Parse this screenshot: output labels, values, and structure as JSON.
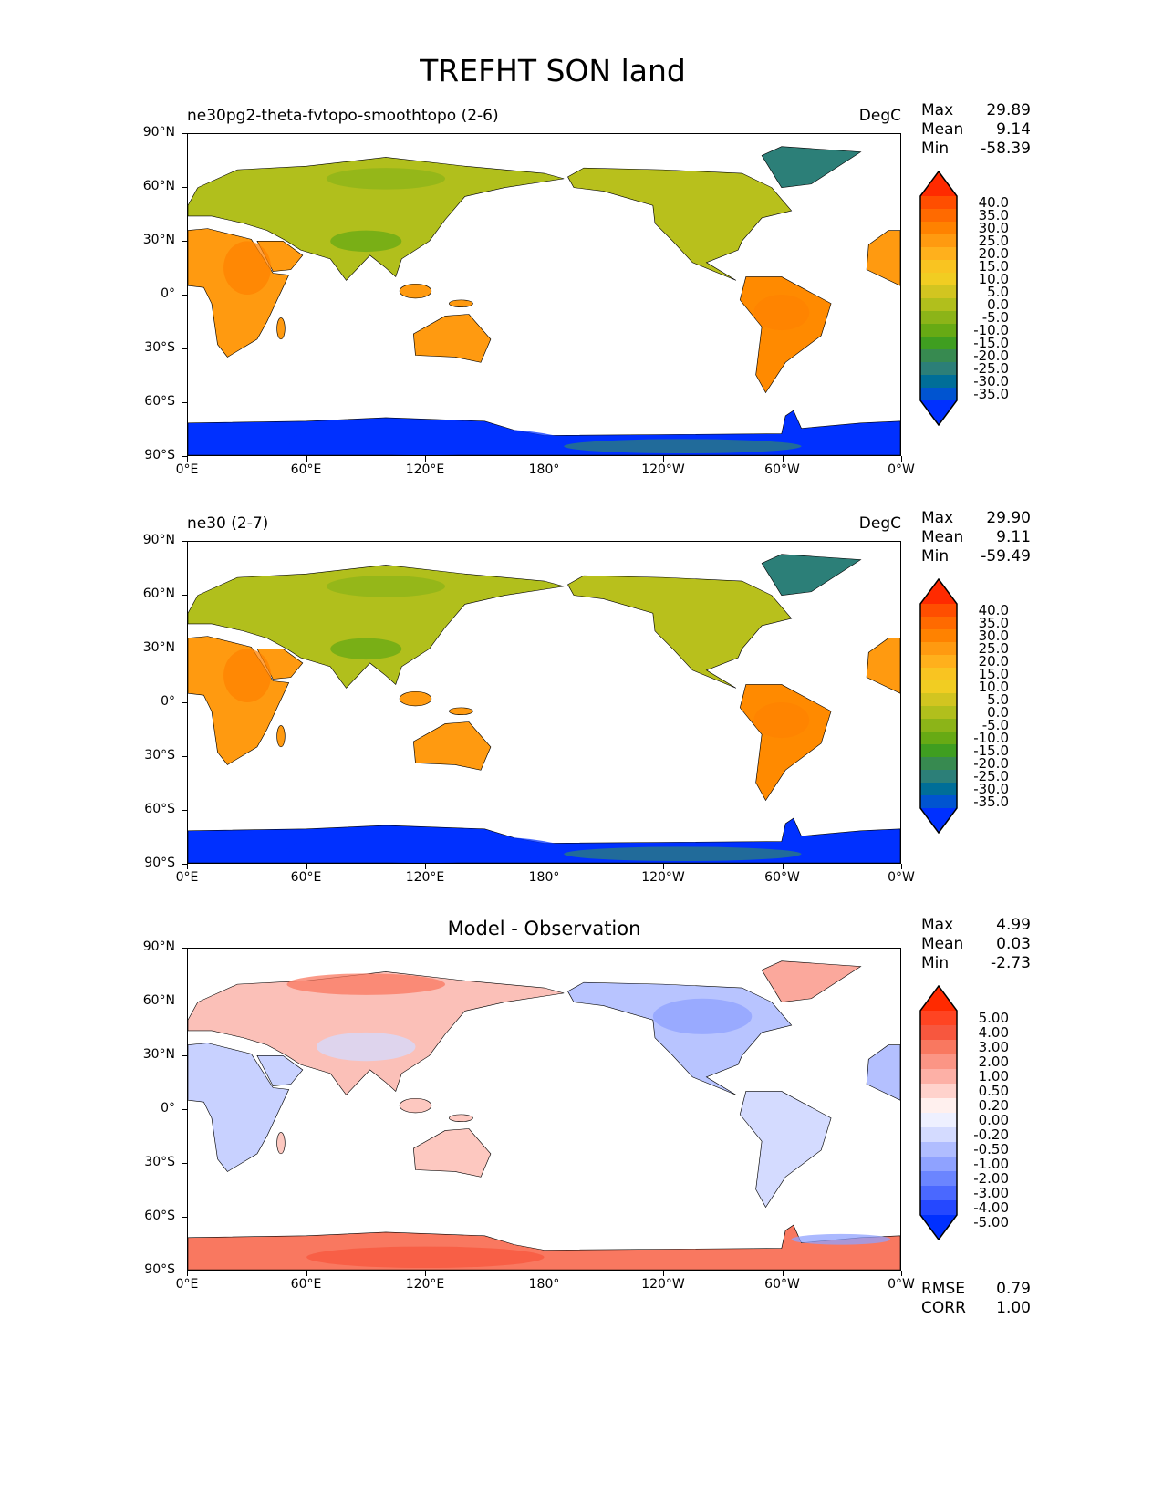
{
  "title": "TREFHT SON land",
  "x_ticks": [
    "0°E",
    "60°E",
    "120°E",
    "180°",
    "120°W",
    "60°W",
    "0°W"
  ],
  "y_ticks": [
    "90°N",
    "60°N",
    "30°N",
    "0°",
    "30°S",
    "60°S",
    "90°S"
  ],
  "panels": [
    {
      "title_left": "ne30pg2-theta-fvtopo-smoothtopo (2-6)",
      "title_right": "DegC",
      "title_center": "",
      "stats": {
        "max_label": "Max",
        "max": "29.89",
        "mean_label": "Mean",
        "mean": "9.14",
        "min_label": "Min",
        "min": "-58.39"
      },
      "colorbar": {
        "labels": [
          "40.0",
          "35.0",
          "30.0",
          "25.0",
          "20.0",
          "15.0",
          "10.0",
          "5.0",
          "0.0",
          "-5.0",
          "-10.0",
          "-15.0",
          "-20.0",
          "-25.0",
          "-30.0",
          "-35.0"
        ],
        "colors": [
          "#ff2a00",
          "#ff4e00",
          "#ff6a00",
          "#ff8200",
          "#ff9a10",
          "#ffb01c",
          "#f9c421",
          "#f1cd22",
          "#d2c520",
          "#b1bf1c",
          "#8cb418",
          "#67aa14",
          "#3f9e20",
          "#378a50",
          "#2c7f78",
          "#006e98",
          "#0054d0",
          "#0030ff"
        ]
      }
    },
    {
      "title_left": "ne30 (2-7)",
      "title_right": "DegC",
      "title_center": "",
      "stats": {
        "max_label": "Max",
        "max": "29.90",
        "mean_label": "Mean",
        "mean": "9.11",
        "min_label": "Min",
        "min": "-59.49"
      },
      "colorbar": {
        "labels": [
          "40.0",
          "35.0",
          "30.0",
          "25.0",
          "20.0",
          "15.0",
          "10.0",
          "5.0",
          "0.0",
          "-5.0",
          "-10.0",
          "-15.0",
          "-20.0",
          "-25.0",
          "-30.0",
          "-35.0"
        ],
        "colors": [
          "#ff2a00",
          "#ff4e00",
          "#ff6a00",
          "#ff8200",
          "#ff9a10",
          "#ffb01c",
          "#f9c421",
          "#f1cd22",
          "#d2c520",
          "#b1bf1c",
          "#8cb418",
          "#67aa14",
          "#3f9e20",
          "#378a50",
          "#2c7f78",
          "#006e98",
          "#0054d0",
          "#0030ff"
        ]
      }
    },
    {
      "title_left": "",
      "title_right": "",
      "title_center": "Model - Observation",
      "stats": {
        "max_label": "Max",
        "max": "4.99",
        "mean_label": "Mean",
        "mean": "0.03",
        "min_label": "Min",
        "min": "-2.73"
      },
      "extra": {
        "rmse_label": "RMSE",
        "rmse": "0.79",
        "corr_label": "CORR",
        "corr": "1.00"
      },
      "colorbar": {
        "labels": [
          "5.00",
          "4.00",
          "3.00",
          "2.00",
          "1.00",
          "0.50",
          "0.20",
          "0.00",
          "-0.20",
          "-0.50",
          "-1.00",
          "-2.00",
          "-3.00",
          "-4.00",
          "-5.00"
        ],
        "colors": [
          "#ff2a00",
          "#ff4422",
          "#f7573e",
          "#f97860",
          "#fb9585",
          "#fdb0a6",
          "#ffd2cc",
          "#fff0ee",
          "#eef0ff",
          "#d4dbff",
          "#b0bdff",
          "#8fa2ff",
          "#6b85ff",
          "#4a68ff",
          "#2548ff",
          "#0030ff"
        ]
      }
    }
  ]
}
